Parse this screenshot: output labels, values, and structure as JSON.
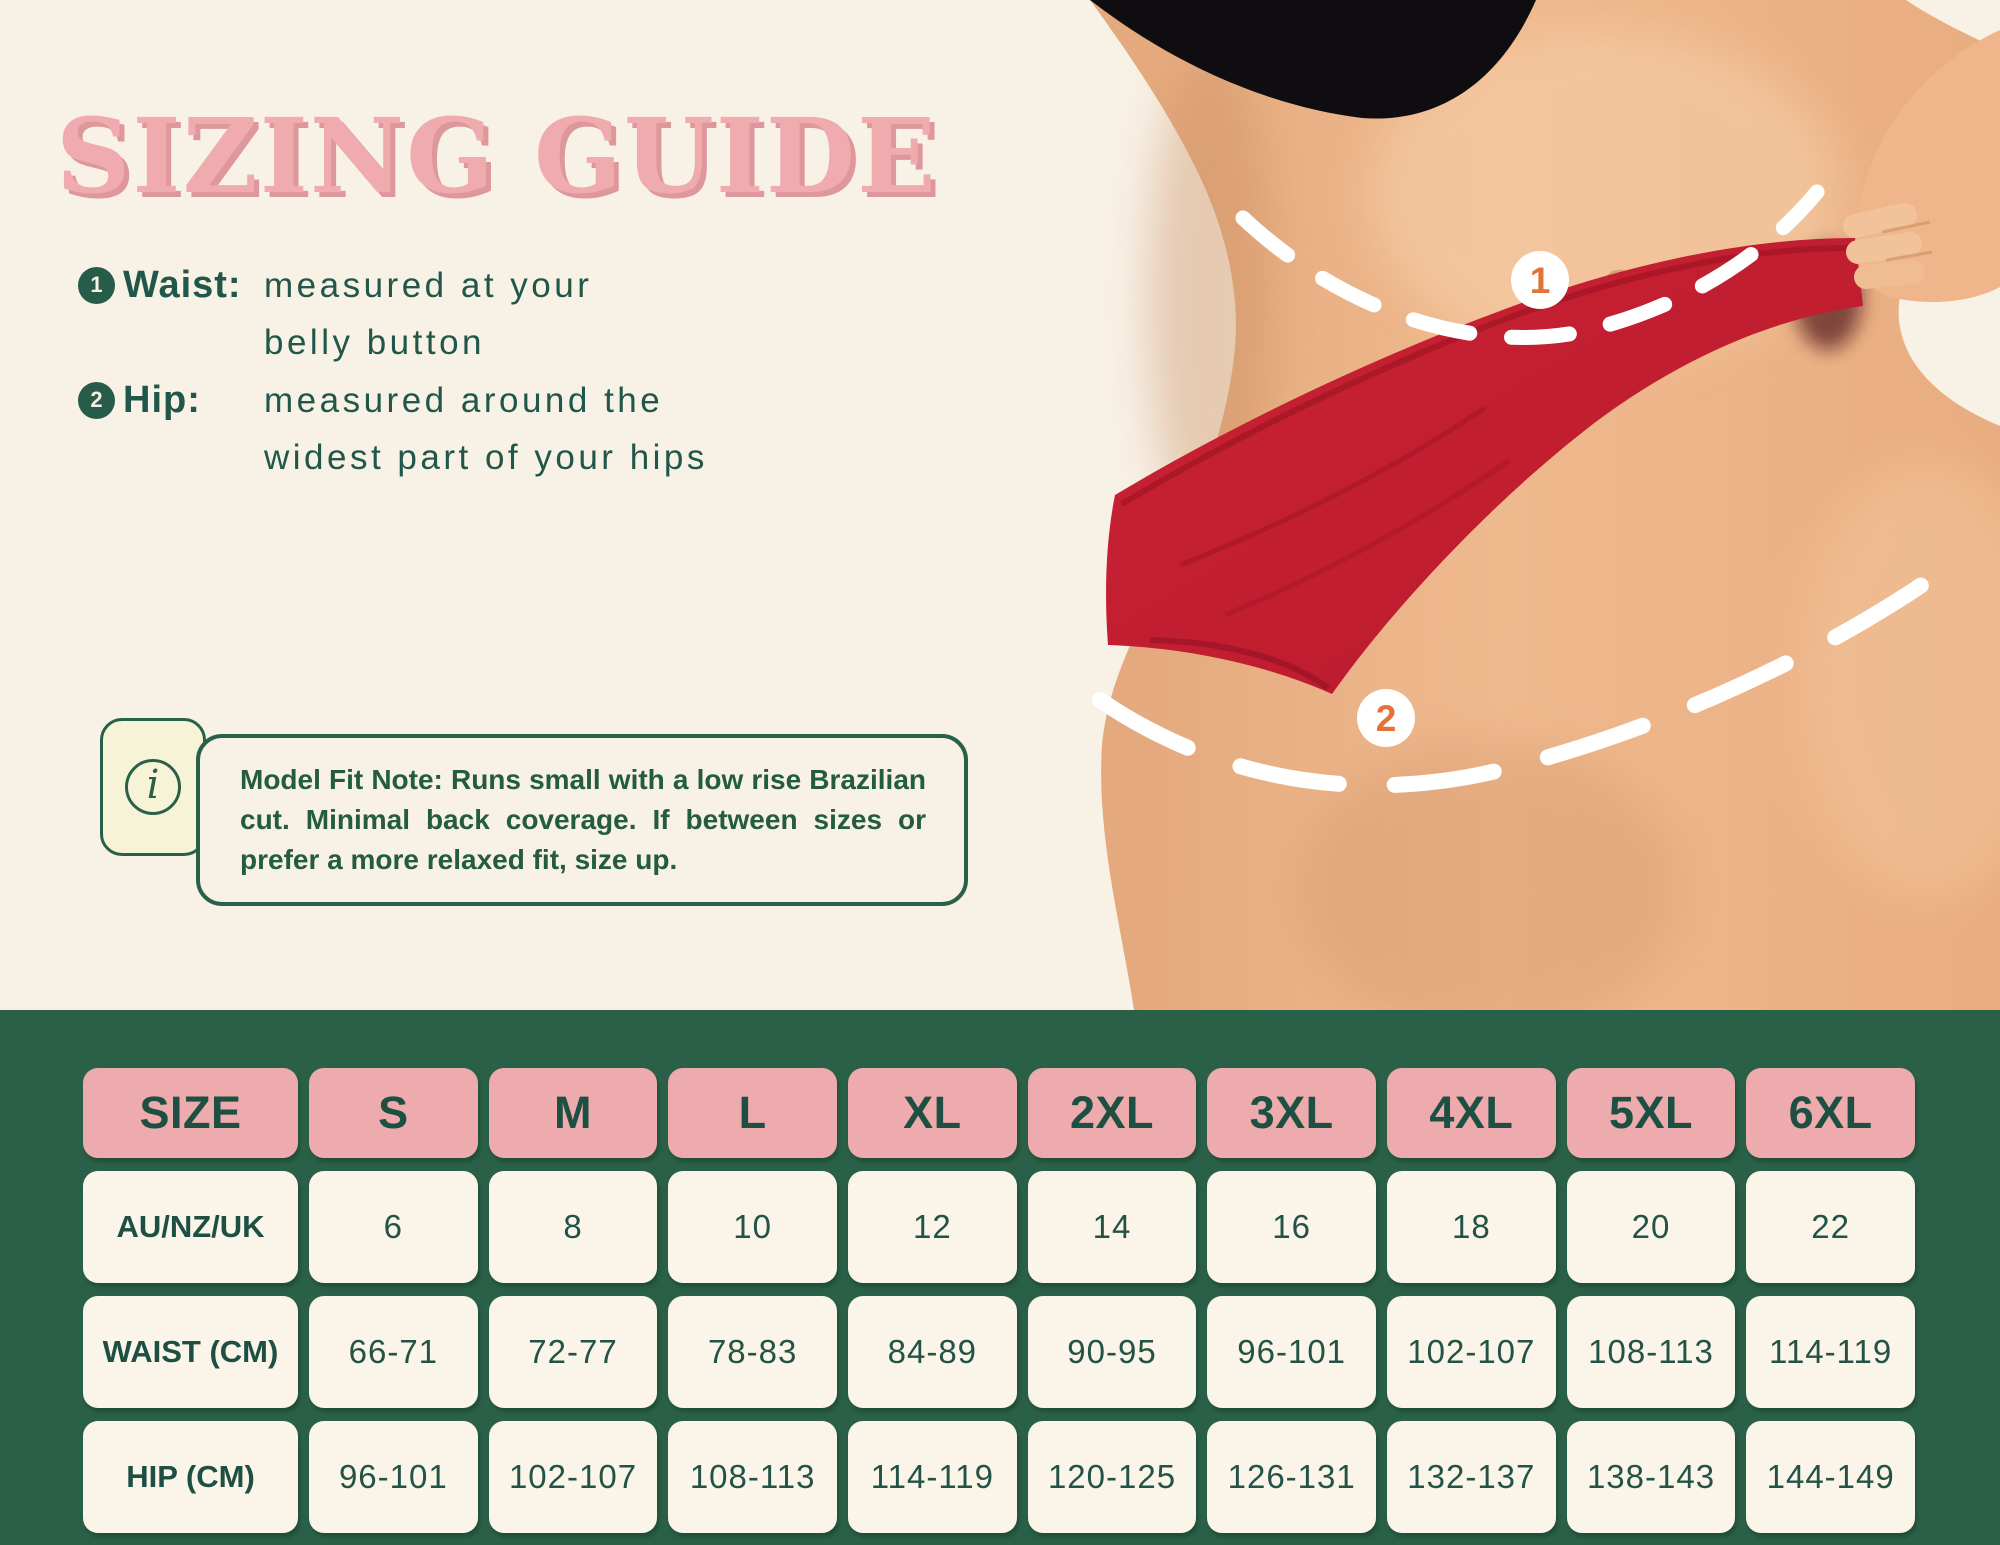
{
  "title": "SIZING GUIDE",
  "instructions": [
    {
      "num": "1",
      "label": "Waist:",
      "lines": [
        "measured at your",
        "belly button"
      ]
    },
    {
      "num": "2",
      "label": "Hip:",
      "lines": [
        "measured around the",
        "widest part of your hips"
      ]
    }
  ],
  "note": {
    "icon": "info-icon",
    "text": "Model Fit Note: Runs small with a low rise Brazilian cut. Minimal back coverage. If between sizes or prefer a more relaxed fit, size up."
  },
  "figure": {
    "description": "cutout photo of model in red brazilian-cut underwear with dashed measurement lines",
    "markers": [
      {
        "num": "1",
        "meaning": "waist measurement line"
      },
      {
        "num": "2",
        "meaning": "hip measurement line"
      }
    ]
  },
  "size_table": {
    "header": [
      "SIZE",
      "S",
      "M",
      "L",
      "XL",
      "2XL",
      "3XL",
      "4XL",
      "5XL",
      "6XL"
    ],
    "rows": [
      {
        "label": "AU/NZ/UK",
        "values": [
          "6",
          "8",
          "10",
          "12",
          "14",
          "16",
          "18",
          "20",
          "22"
        ]
      },
      {
        "label": "WAIST (CM)",
        "values": [
          "66-71",
          "72-77",
          "78-83",
          "84-89",
          "90-95",
          "96-101",
          "102-107",
          "108-113",
          "114-119"
        ]
      },
      {
        "label": "HIP (CM)",
        "values": [
          "96-101",
          "102-107",
          "108-113",
          "114-119",
          "120-125",
          "126-131",
          "132-137",
          "138-143",
          "144-149"
        ]
      }
    ]
  },
  "colors": {
    "background": "#f8f1e6",
    "title_pink": "#efabad",
    "text_green": "#21574a",
    "table_background": "#2a6047",
    "header_cell_pink": "#eeabae",
    "cell_cream": "#faf4e9",
    "garment_red": "#c41f33",
    "marker_orange": "#e2713a"
  }
}
